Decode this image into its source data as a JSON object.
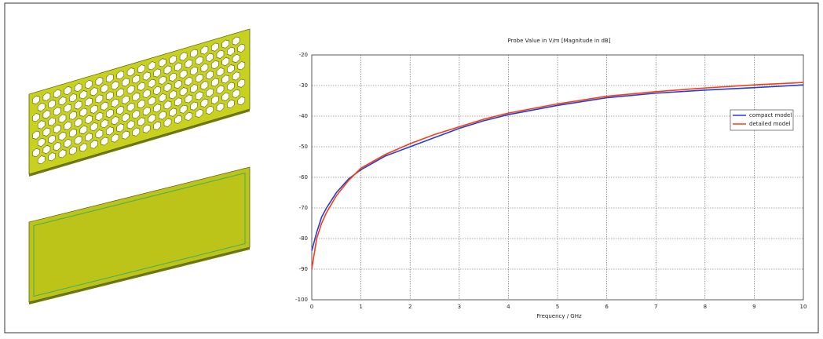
{
  "chart_data": {
    "type": "line",
    "title": "Probe Value in V/m [Magnitude in dB]",
    "x_label": "Frequency / GHz",
    "xlim": [
      0,
      10
    ],
    "xticks": [
      0,
      1,
      2,
      3,
      4,
      5,
      6,
      7,
      8,
      9,
      10
    ],
    "ylim": [
      -100,
      -20
    ],
    "yticks": [
      -100,
      -90,
      -80,
      -70,
      -60,
      -50,
      -40,
      -30,
      -20
    ],
    "grid": true,
    "x": [
      0,
      0.1,
      0.2,
      0.3,
      0.5,
      0.75,
      1,
      1.5,
      2,
      2.5,
      3,
      3.5,
      4,
      5,
      6,
      7,
      8,
      9,
      10
    ],
    "series": [
      {
        "name": "compact model",
        "color": "#1f3fd8",
        "values": [
          -84,
          -78,
          -73,
          -70,
          -65,
          -60.5,
          -57.5,
          -53,
          -50,
          -47,
          -44,
          -41.5,
          -39.5,
          -36.5,
          -34,
          -32.5,
          -31.5,
          -30.7,
          -29.8
        ]
      },
      {
        "name": "detailed model",
        "color": "#ff3a10",
        "values": [
          -90,
          -80,
          -75,
          -71.5,
          -66,
          -61,
          -57,
          -52.5,
          -49,
          -46,
          -43.5,
          -41,
          -39,
          -36,
          -33.5,
          -32,
          -30.8,
          -29.8,
          -29
        ]
      }
    ]
  }
}
